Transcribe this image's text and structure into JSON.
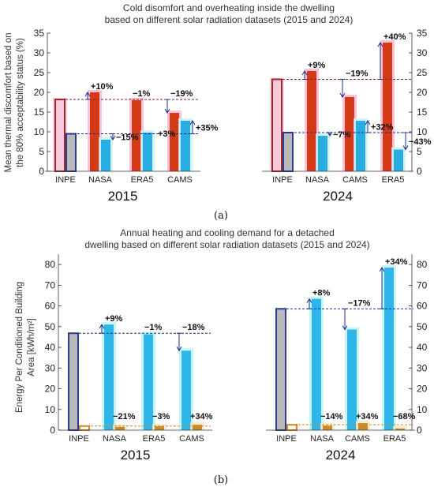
{
  "colors": {
    "inpe_overheat": "#f6c9dc",
    "inpe_overheat_stroke": "#9b2a2a",
    "inpe_cold": "#b9b9b9",
    "inpe_cold_stroke": "#2c3b8e",
    "overheat": "#d53a17",
    "overheat_glow": "#ffb3cf",
    "cold": "#29aee3",
    "cold_glow": "#c8f0f8",
    "heating": "#2fb6ea",
    "heating_glow": "#b8f2f6",
    "cooling": "#c98a2a",
    "cooling_glow": "#f3e6c0",
    "dashed_red": "#8a1e3a",
    "dashed_blue": "#1e2f8a",
    "arrow": "#1e2f8a"
  },
  "chart_data": [
    {
      "id": "a",
      "type": "bar",
      "panel_label": "(a)",
      "title_lines": [
        "Cold disomfort and overheating inside the dwelling",
        "based on different solar radiation datasets (2015 and 2024)"
      ],
      "ylabel_lines": [
        "Mean thermal discomfort based on",
        "the 80% acceptability status (%)"
      ],
      "ylim": [
        0,
        35
      ],
      "yticks": [
        0,
        5,
        10,
        15,
        20,
        25,
        30,
        35
      ],
      "grid": false,
      "groups": [
        {
          "year": "2015",
          "categories": [
            "INPE",
            "NASA",
            "ERA5",
            "CAMS"
          ],
          "overheating": [
            18.2,
            20.0,
            18.0,
            14.8
          ],
          "cold": [
            9.5,
            8.0,
            9.8,
            12.8
          ],
          "annotations": [
            {
              "text": "+10%",
              "cat": 1,
              "series": "overheating"
            },
            {
              "text": "−1%",
              "cat": 2,
              "series": "overheating"
            },
            {
              "text": "−19%",
              "cat": 3,
              "series": "overheating"
            },
            {
              "text": "−15%",
              "cat": 1,
              "series": "cold"
            },
            {
              "text": "+3%",
              "cat": 2,
              "series": "cold"
            },
            {
              "text": "+35%",
              "cat": 3,
              "series": "cold"
            }
          ]
        },
        {
          "year": "2024",
          "categories": [
            "INPE",
            "NASA",
            "CAMS",
            "ERA5"
          ],
          "overheating": [
            23.3,
            25.4,
            18.8,
            32.6
          ],
          "cold": [
            9.8,
            9.0,
            12.8,
            5.5
          ],
          "annotations": [
            {
              "text": "+9%",
              "cat": 1,
              "series": "overheating"
            },
            {
              "text": "−19%",
              "cat": 2,
              "series": "overheating"
            },
            {
              "text": "+40%",
              "cat": 3,
              "series": "overheating"
            },
            {
              "text": "−7%",
              "cat": 1,
              "series": "cold"
            },
            {
              "text": "+32%",
              "cat": 2,
              "series": "cold"
            },
            {
              "text": "−43%",
              "cat": 3,
              "series": "cold"
            }
          ]
        }
      ]
    },
    {
      "id": "b",
      "type": "bar",
      "panel_label": "(b)",
      "title_lines": [
        "Annual heating and cooling demand for a detached",
        "dwelling based on different solar radiation datasets (2015 and 2024)"
      ],
      "ylabel_lines": [
        "Energy Per Conditioned Building",
        "Area [kWh/m²]"
      ],
      "ylim": [
        0,
        85
      ],
      "yticks": [
        0,
        10,
        20,
        30,
        40,
        50,
        60,
        70,
        80
      ],
      "grid": false,
      "groups": [
        {
          "year": "2015",
          "categories": [
            "INPE",
            "NASA",
            "ERA5",
            "CAMS"
          ],
          "heating": [
            46.8,
            51.0,
            46.3,
            38.4
          ],
          "cooling": [
            2.0,
            1.6,
            1.9,
            2.6
          ],
          "annotations": [
            {
              "text": "+9%",
              "cat": 1,
              "series": "heating"
            },
            {
              "text": "−1%",
              "cat": 2,
              "series": "heating"
            },
            {
              "text": "−18%",
              "cat": 3,
              "series": "heating"
            },
            {
              "text": "−21%",
              "cat": 1,
              "series": "cooling"
            },
            {
              "text": "−3%",
              "cat": 2,
              "series": "cooling"
            },
            {
              "text": "+34%",
              "cat": 3,
              "series": "cooling"
            }
          ]
        },
        {
          "year": "2024",
          "categories": [
            "INPE",
            "NASA",
            "CAMS",
            "ERA5"
          ],
          "heating": [
            58.6,
            63.4,
            48.6,
            78.5
          ],
          "cooling": [
            2.6,
            2.2,
            3.4,
            0.8
          ],
          "annotations": [
            {
              "text": "+8%",
              "cat": 1,
              "series": "heating"
            },
            {
              "text": "−17%",
              "cat": 2,
              "series": "heating"
            },
            {
              "text": "+34%",
              "cat": 3,
              "series": "heating"
            },
            {
              "text": "−14%",
              "cat": 1,
              "series": "cooling"
            },
            {
              "text": "+34%",
              "cat": 2,
              "series": "cooling"
            },
            {
              "text": "−68%",
              "cat": 3,
              "series": "cooling"
            }
          ]
        }
      ]
    }
  ]
}
